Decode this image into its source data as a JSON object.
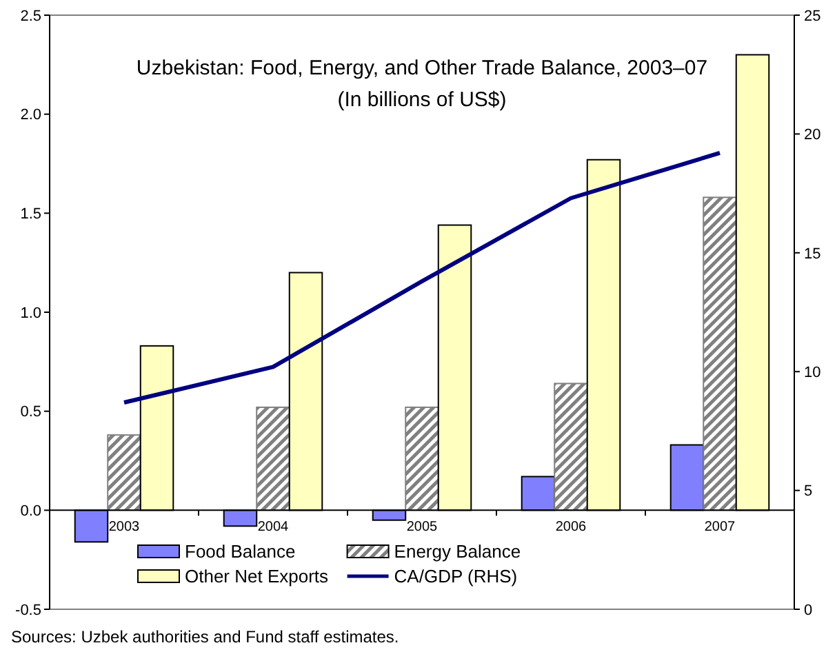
{
  "chart_data": {
    "type": "bar",
    "title": "Uzbekistan: Food, Energy, and Other Trade Balance, 2003–07",
    "subtitle": "(In billions of US$)",
    "categories": [
      "2003",
      "2004",
      "2005",
      "2006",
      "2007"
    ],
    "series": [
      {
        "name": "Food Balance",
        "color": "#8080ff",
        "values": [
          -0.16,
          -0.08,
          -0.05,
          0.17,
          0.33
        ]
      },
      {
        "name": "Energy Balance",
        "color": "#808080",
        "values": [
          0.38,
          0.52,
          0.52,
          0.64,
          1.58
        ]
      },
      {
        "name": "Other Net Exports",
        "color": "#ffffc0",
        "values": [
          0.83,
          1.2,
          1.44,
          1.77,
          2.3
        ]
      },
      {
        "name": "CA/GDP (RHS)",
        "type": "line",
        "axis": "y2",
        "color": "#000080",
        "values": [
          8.7,
          10.2,
          13.8,
          17.3,
          19.2
        ]
      }
    ],
    "ylim": [
      -0.5,
      2.5
    ],
    "yticks": [
      {
        "value": -0.5,
        "label": "-0.5"
      },
      {
        "value": 0,
        "label": "0.0"
      },
      {
        "value": 0.5,
        "label": "0.5"
      },
      {
        "value": 1,
        "label": "1.0"
      },
      {
        "value": 1.5,
        "label": "1.5"
      },
      {
        "value": 2,
        "label": "2.0"
      },
      {
        "value": 2.5,
        "label": "2.5"
      }
    ],
    "y2lim": [
      0,
      25
    ],
    "y2ticks": [
      0,
      5,
      10,
      15,
      20,
      25
    ],
    "legend": "bottom",
    "annotations": [
      "Sources: Uzbek authorities and Fund staff estimates."
    ]
  }
}
